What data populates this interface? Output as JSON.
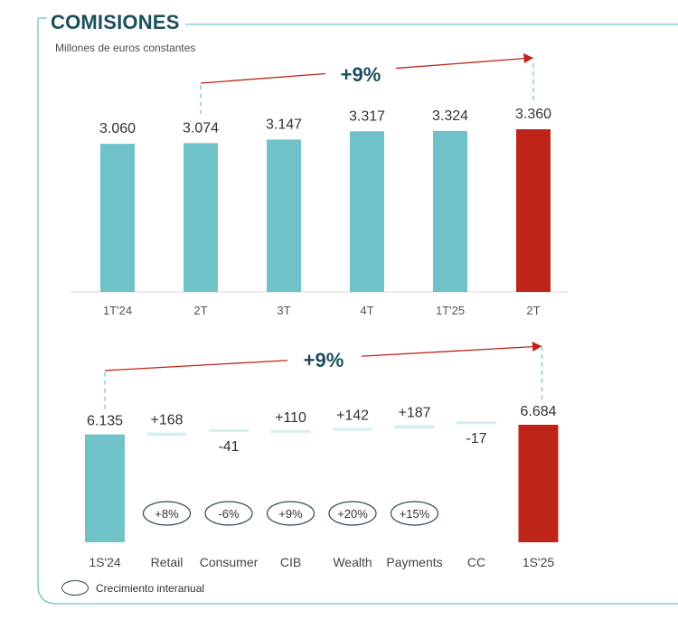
{
  "header": {
    "title": "COMISIONES",
    "subtitle": "Millones de euros constantes"
  },
  "legend": {
    "label": "Crecimiento interanual"
  },
  "colors": {
    "teal": "#6fc3c8",
    "red": "#bf2419",
    "dark_teal": "#1b4f5c",
    "frame": "#6fc3c8"
  },
  "chart_data": [
    {
      "type": "bar",
      "categories": [
        "1T'24",
        "2T",
        "3T",
        "4T",
        "1T'25",
        "2T"
      ],
      "values": [
        3060,
        3074,
        3147,
        3317,
        3324,
        3360
      ],
      "value_labels": [
        "3.060",
        "3.074",
        "3.147",
        "3.317",
        "3.324",
        "3.360"
      ],
      "highlight_index": 5,
      "annotation": {
        "text": "+9%",
        "from_category": 1,
        "to_category": 5
      }
    },
    {
      "type": "waterfall",
      "categories": [
        "1S'24",
        "Retail",
        "Consumer",
        "CIB",
        "Wealth",
        "Payments",
        "CC",
        "1S'25"
      ],
      "values": [
        6135,
        168,
        -41,
        110,
        142,
        187,
        -17,
        6684
      ],
      "value_labels": [
        "6.135",
        "+168",
        "-41",
        "+110",
        "+142",
        "+187",
        "-17",
        "6.684"
      ],
      "kinds": [
        "total",
        "delta",
        "delta",
        "delta",
        "delta",
        "delta",
        "delta",
        "total"
      ],
      "growth_labels": [
        "",
        "+8%",
        "-6%",
        "+9%",
        "+20%",
        "+15%",
        "",
        ""
      ],
      "annotation": {
        "text": "+9%",
        "from_category": 0,
        "to_category": 7
      }
    }
  ]
}
